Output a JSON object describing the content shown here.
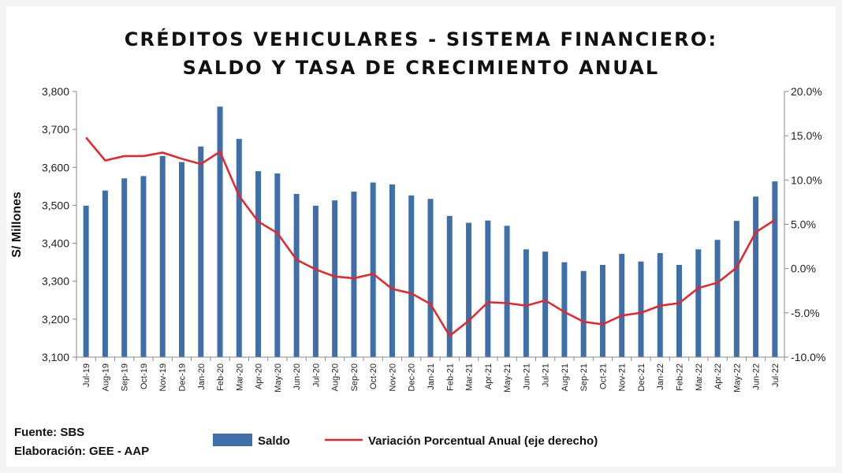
{
  "chart_data": {
    "type": "bar",
    "title": [
      "CRÉDITOS VEHICULARES - SISTEMA FINANCIERO:",
      "SALDO Y TASA DE CRECIMIENTO ANUAL"
    ],
    "ylabel": "S/ Millones",
    "categories": [
      "Jul-19",
      "Aug-19",
      "Sep-19",
      "Oct-19",
      "Nov-19",
      "Dec-19",
      "Jan-20",
      "Feb-20",
      "Mar-20",
      "Apr-20",
      "May-20",
      "Jun-20",
      "Jul-20",
      "Aug-20",
      "Sep-20",
      "Oct-20",
      "Nov-20",
      "Dec-20",
      "Jan-21",
      "Feb-21",
      "Mar-21",
      "Apr-21",
      "May-21",
      "Jun-21",
      "Jul-21",
      "Aug-21",
      "Sep-21",
      "Oct-21",
      "Nov-21",
      "Dec-21",
      "Jan-22",
      "Feb-22",
      "Mar-22",
      "Apr-22",
      "May-22",
      "Jun-22",
      "Jul-22"
    ],
    "series": [
      {
        "name": "Saldo",
        "type": "bar",
        "axis": "left",
        "color": "#3F6FA9",
        "values": [
          3499,
          3539,
          3571,
          3577,
          3630,
          3614,
          3655,
          3760,
          3675,
          3590,
          3584,
          3530,
          3499,
          3513,
          3536,
          3560,
          3555,
          3526,
          3517,
          3472,
          3454,
          3460,
          3446,
          3384,
          3378,
          3350,
          3327,
          3343,
          3372,
          3352,
          3374,
          3343,
          3384,
          3409,
          3459,
          3523,
          3563
        ]
      },
      {
        "name": "Variación Porcentual Anual (eje derecho)",
        "type": "line",
        "axis": "right",
        "color": "#E8242B",
        "values": [
          14.8,
          12.2,
          12.7,
          12.7,
          13.1,
          12.4,
          11.8,
          13.2,
          8.2,
          5.3,
          4.0,
          1.0,
          -0.1,
          -0.9,
          -1.1,
          -0.6,
          -2.3,
          -2.8,
          -4.0,
          -7.6,
          -5.9,
          -3.8,
          -3.9,
          -4.2,
          -3.6,
          -4.9,
          -6.0,
          -6.3,
          -5.3,
          -5.0,
          -4.2,
          -3.9,
          -2.2,
          -1.6,
          0.1,
          4.1,
          5.5
        ]
      }
    ],
    "ylim_left": [
      3100,
      3800
    ],
    "ylim_right": [
      -10,
      20
    ],
    "yticks_left": [
      "3,800",
      "3,700",
      "3,600",
      "3,500",
      "3,400",
      "3,300",
      "3,200",
      "3,100"
    ],
    "yticks_right": [
      "20.0%",
      "15.0%",
      "10.0%",
      "5.0%",
      "0.0%",
      "-5.0%",
      "-10.0%"
    ],
    "grid": false,
    "legend_placement": "bottom"
  },
  "footer": {
    "source": "Fuente: SBS",
    "credit": "Elaboración: GEE - AAP"
  },
  "legend": {
    "bar_label": "Saldo",
    "line_label": "Variación Porcentual Anual (eje derecho)"
  }
}
